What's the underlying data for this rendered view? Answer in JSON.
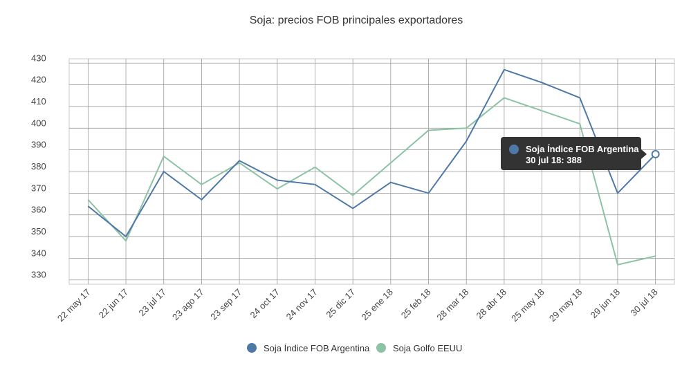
{
  "chart_data": {
    "type": "line",
    "title": "Soja: precios FOB principales exportadores",
    "categories": [
      "22 may 17",
      "22 jun 17",
      "23 jul 17",
      "23 ago 17",
      "23 sep 17",
      "24 oct 17",
      "24 nov 17",
      "25 dic 17",
      "25 ene 18",
      "25 feb 18",
      "28 mar 18",
      "28 abr 18",
      "25 may 18",
      "29 may 18",
      "29 jun 18",
      "30 jul 18"
    ],
    "yticks": [
      330,
      340,
      350,
      360,
      370,
      380,
      390,
      400,
      410,
      420,
      430
    ],
    "ylim": [
      328,
      432
    ],
    "grid": true,
    "legend_position": "bottom",
    "series": [
      {
        "name": "Soja Índice FOB Argentina",
        "color": "#4e79a7",
        "values": [
          364,
          350,
          380,
          367,
          385,
          376,
          374,
          363,
          375,
          370,
          394,
          427,
          421,
          414,
          370,
          388
        ]
      },
      {
        "name": "Soja Golfo EEUU",
        "color": "#8cc3a5",
        "values": [
          367,
          348,
          387,
          374,
          384,
          372,
          382,
          369,
          384,
          399,
          400,
          414,
          408,
          402,
          337,
          341
        ]
      }
    ],
    "tooltip": {
      "series_name": "Soja Índice FOB Argentina",
      "text": "30 jul 18: 388",
      "category_index": 15
    }
  }
}
